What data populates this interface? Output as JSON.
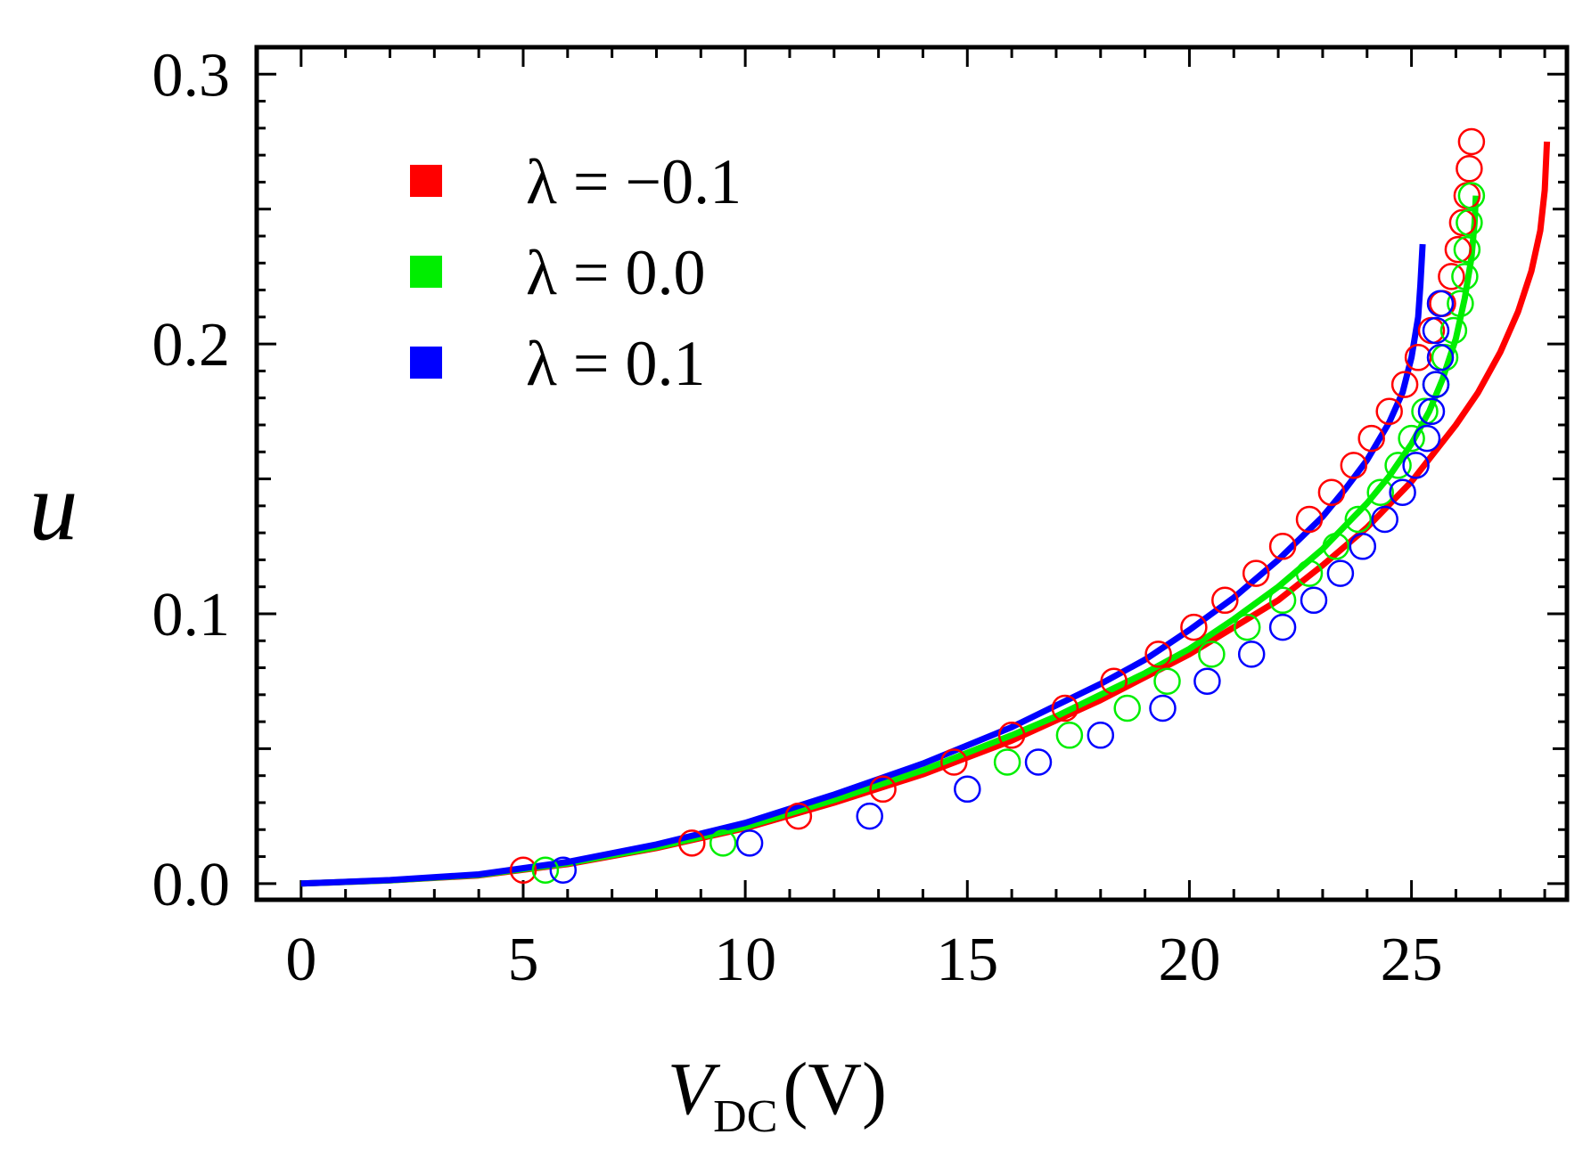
{
  "chart_data": {
    "type": "scatter",
    "title": "",
    "xlabel": {
      "main": "V",
      "subscript": "DC",
      "unit": "(V)"
    },
    "ylabel": "u",
    "xlim": [
      -1,
      28.5
    ],
    "ylim": [
      -0.006,
      0.31
    ],
    "xticks": [
      0,
      5,
      10,
      15,
      20,
      25
    ],
    "xtick_labels": [
      "0",
      "5",
      "10",
      "15",
      "20",
      "25"
    ],
    "yticks": [
      0.0,
      0.1,
      0.2,
      0.3
    ],
    "ytick_labels": [
      "0.0",
      "0.1",
      "0.2",
      "0.3"
    ],
    "legend_position": "top-left",
    "series": [
      {
        "name": "λ = −0.1",
        "label_text": "λ = −0.1",
        "color": "#ff0000",
        "points": [
          [
            5.0,
            0.005
          ],
          [
            8.8,
            0.015
          ],
          [
            11.2,
            0.025
          ],
          [
            13.1,
            0.035
          ],
          [
            14.7,
            0.045
          ],
          [
            16.0,
            0.055
          ],
          [
            17.2,
            0.065
          ],
          [
            18.3,
            0.075
          ],
          [
            19.3,
            0.085
          ],
          [
            20.1,
            0.095
          ],
          [
            20.8,
            0.105
          ],
          [
            21.5,
            0.115
          ],
          [
            22.1,
            0.125
          ],
          [
            22.7,
            0.135
          ],
          [
            23.2,
            0.145
          ],
          [
            23.7,
            0.155
          ],
          [
            24.1,
            0.165
          ],
          [
            24.5,
            0.175
          ],
          [
            24.85,
            0.185
          ],
          [
            25.15,
            0.195
          ],
          [
            25.45,
            0.205
          ],
          [
            25.7,
            0.215
          ],
          [
            25.9,
            0.225
          ],
          [
            26.05,
            0.235
          ],
          [
            26.15,
            0.245
          ],
          [
            26.25,
            0.255
          ],
          [
            26.3,
            0.265
          ],
          [
            26.35,
            0.275
          ]
        ],
        "curve": [
          [
            0,
            0.0
          ],
          [
            2,
            0.0012
          ],
          [
            4,
            0.003
          ],
          [
            6,
            0.0072
          ],
          [
            8,
            0.0132
          ],
          [
            10,
            0.0205
          ],
          [
            12,
            0.03
          ],
          [
            14,
            0.0405
          ],
          [
            16,
            0.053
          ],
          [
            18,
            0.068
          ],
          [
            20,
            0.085
          ],
          [
            21,
            0.095
          ],
          [
            22,
            0.105
          ],
          [
            23,
            0.118
          ],
          [
            24,
            0.132
          ],
          [
            25,
            0.149
          ],
          [
            26,
            0.17
          ],
          [
            26.5,
            0.182
          ],
          [
            27,
            0.197
          ],
          [
            27.4,
            0.212
          ],
          [
            27.7,
            0.227
          ],
          [
            27.9,
            0.242
          ],
          [
            28.0,
            0.257
          ],
          [
            28.05,
            0.275
          ]
        ]
      },
      {
        "name": "λ = 0.0",
        "label_text": "λ = 0.0",
        "color": "#00ee00",
        "points": [
          [
            5.5,
            0.005
          ],
          [
            9.5,
            0.015
          ],
          [
            15.9,
            0.045
          ],
          [
            17.3,
            0.055
          ],
          [
            18.6,
            0.065
          ],
          [
            19.5,
            0.075
          ],
          [
            20.5,
            0.085
          ],
          [
            21.3,
            0.095
          ],
          [
            22.1,
            0.105
          ],
          [
            22.7,
            0.115
          ],
          [
            23.3,
            0.125
          ],
          [
            23.8,
            0.135
          ],
          [
            24.3,
            0.145
          ],
          [
            24.7,
            0.155
          ],
          [
            25.0,
            0.165
          ],
          [
            25.3,
            0.175
          ],
          [
            25.55,
            0.185
          ],
          [
            25.75,
            0.195
          ],
          [
            25.95,
            0.205
          ],
          [
            26.1,
            0.215
          ],
          [
            26.2,
            0.225
          ],
          [
            26.25,
            0.235
          ],
          [
            26.3,
            0.245
          ],
          [
            26.35,
            0.255
          ]
        ],
        "curve": [
          [
            0,
            0.0
          ],
          [
            2,
            0.0012
          ],
          [
            4,
            0.0032
          ],
          [
            6,
            0.0075
          ],
          [
            8,
            0.0135
          ],
          [
            10,
            0.021
          ],
          [
            12,
            0.031
          ],
          [
            14,
            0.042
          ],
          [
            16,
            0.055
          ],
          [
            17,
            0.062
          ],
          [
            18,
            0.07
          ],
          [
            19,
            0.078
          ],
          [
            20,
            0.087
          ],
          [
            21,
            0.098
          ],
          [
            22,
            0.11
          ],
          [
            23,
            0.124
          ],
          [
            24,
            0.141
          ],
          [
            24.5,
            0.151
          ],
          [
            25,
            0.163
          ],
          [
            25.4,
            0.175
          ],
          [
            25.7,
            0.187
          ],
          [
            26.0,
            0.202
          ],
          [
            26.2,
            0.217
          ],
          [
            26.35,
            0.232
          ],
          [
            26.42,
            0.245
          ],
          [
            26.45,
            0.255
          ]
        ]
      },
      {
        "name": "λ = 0.1",
        "label_text": "λ = 0.1",
        "color": "#0000ff",
        "points": [
          [
            5.9,
            0.005
          ],
          [
            10.1,
            0.015
          ],
          [
            12.8,
            0.025
          ],
          [
            15.0,
            0.035
          ],
          [
            16.6,
            0.045
          ],
          [
            18.0,
            0.055
          ],
          [
            19.4,
            0.065
          ],
          [
            20.4,
            0.075
          ],
          [
            21.4,
            0.085
          ],
          [
            22.1,
            0.095
          ],
          [
            22.8,
            0.105
          ],
          [
            23.4,
            0.115
          ],
          [
            23.9,
            0.125
          ],
          [
            24.4,
            0.135
          ],
          [
            24.8,
            0.145
          ],
          [
            25.1,
            0.155
          ],
          [
            25.35,
            0.165
          ],
          [
            25.45,
            0.175
          ],
          [
            25.55,
            0.185
          ],
          [
            25.65,
            0.195
          ],
          [
            25.55,
            0.205
          ],
          [
            25.65,
            0.215
          ]
        ],
        "curve": [
          [
            0,
            0.0
          ],
          [
            2,
            0.0013
          ],
          [
            4,
            0.0034
          ],
          [
            6,
            0.008
          ],
          [
            8,
            0.0145
          ],
          [
            10,
            0.0225
          ],
          [
            12,
            0.033
          ],
          [
            14,
            0.0445
          ],
          [
            16,
            0.058
          ],
          [
            17,
            0.066
          ],
          [
            18,
            0.074
          ],
          [
            19,
            0.083
          ],
          [
            20,
            0.094
          ],
          [
            21,
            0.106
          ],
          [
            22,
            0.12
          ],
          [
            23,
            0.136
          ],
          [
            23.5,
            0.146
          ],
          [
            24,
            0.157
          ],
          [
            24.5,
            0.171
          ],
          [
            24.8,
            0.182
          ],
          [
            25.0,
            0.195
          ],
          [
            25.15,
            0.21
          ],
          [
            25.2,
            0.222
          ],
          [
            25.25,
            0.237
          ]
        ]
      }
    ]
  }
}
